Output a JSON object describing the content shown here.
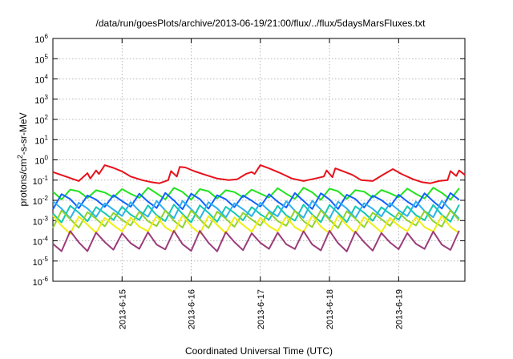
{
  "chart_data": {
    "type": "line",
    "title": "/data/run/goesPlots/archive/2013-06-19/21:00/flux/../flux/5daysMarsFluxes.txt",
    "xlabel": "Coordinated Universal Time (UTC)",
    "ylabel_parts": [
      "protons/cm",
      "2",
      "-s-sr-MeV"
    ],
    "y_scale": "log",
    "ylim": [
      1e-06,
      1000000.0
    ],
    "xlim": [
      "2013-06-14T00:00",
      "2013-06-19T23:00"
    ],
    "x_ticks": [
      {
        "label": "2013-6-15",
        "t": "2013-06-15T00:00"
      },
      {
        "label": "2013-6-16",
        "t": "2013-06-16T00:00"
      },
      {
        "label": "2013-6-17",
        "t": "2013-06-17T00:00"
      },
      {
        "label": "2013-6-18",
        "t": "2013-06-18T00:00"
      },
      {
        "label": "2013-6-19",
        "t": "2013-06-19T00:00"
      }
    ],
    "y_ticks": [
      {
        "base": "10",
        "exp": "-6",
        "value": 1e-06
      },
      {
        "base": "10",
        "exp": "-5",
        "value": 1e-05
      },
      {
        "base": "10",
        "exp": "-4",
        "value": 0.0001
      },
      {
        "base": "10",
        "exp": "-3",
        "value": 0.001
      },
      {
        "base": "10",
        "exp": "-2",
        "value": 0.01
      },
      {
        "base": "10",
        "exp": "-1",
        "value": 0.1
      },
      {
        "base": "10",
        "exp": "0",
        "value": 1
      },
      {
        "base": "10",
        "exp": "1",
        "value": 10
      },
      {
        "base": "10",
        "exp": "2",
        "value": 100
      },
      {
        "base": "10",
        "exp": "3",
        "value": 1000
      },
      {
        "base": "10",
        "exp": "4",
        "value": 10000
      },
      {
        "base": "10",
        "exp": "5",
        "value": 100000
      },
      {
        "base": "10",
        "exp": "6",
        "value": 1000000
      }
    ],
    "grid": true,
    "series": [
      {
        "color": "#e8111b",
        "t": [
          "2013-06-14T00:00",
          "2013-06-14T09:00",
          "2013-06-14T12:00",
          "2013-06-14T13:00",
          "2013-06-14T15:00",
          "2013-06-14T16:00",
          "2013-06-14T18:00",
          "2013-06-14T21:00",
          "2013-06-15T00:00",
          "2013-06-15T03:00",
          "2013-06-15T07:00",
          "2013-06-15T10:00",
          "2013-06-15T13:00",
          "2013-06-15T16:00",
          "2013-06-15T17:00",
          "2013-06-15T19:00",
          "2013-06-15T20:00",
          "2013-06-15T22:00",
          "2013-06-16T01:00",
          "2013-06-16T05:00",
          "2013-06-16T09:00",
          "2013-06-16T13:00",
          "2013-06-16T16:00",
          "2013-06-16T19:00",
          "2013-06-16T21:00",
          "2013-06-16T22:00",
          "2013-06-17T00:00",
          "2013-06-17T03:00",
          "2013-06-17T07:00",
          "2013-06-17T11:00",
          "2013-06-17T15:00",
          "2013-06-17T19:00",
          "2013-06-17T22:00",
          "2013-06-17T23:00",
          "2013-06-18T01:00",
          "2013-06-18T02:00",
          "2013-06-18T04:00",
          "2013-06-18T08:00",
          "2013-06-18T11:00",
          "2013-06-18T15:00",
          "2013-06-18T19:00",
          "2013-06-18T22:00",
          "2013-06-19T01:00",
          "2013-06-19T05:00",
          "2013-06-19T08:00",
          "2013-06-19T11:00",
          "2013-06-19T14:00",
          "2013-06-19T17:00",
          "2013-06-19T18:00",
          "2013-06-19T20:00",
          "2013-06-19T21:00",
          "2013-06-19T23:00"
        ],
        "values": [
          0.25,
          0.09,
          0.22,
          0.12,
          0.3,
          0.2,
          0.55,
          0.4,
          0.27,
          0.15,
          0.1,
          0.08,
          0.07,
          0.1,
          0.28,
          0.15,
          0.45,
          0.42,
          0.28,
          0.18,
          0.12,
          0.1,
          0.11,
          0.2,
          0.25,
          0.2,
          0.55,
          0.38,
          0.22,
          0.12,
          0.09,
          0.12,
          0.15,
          0.3,
          0.14,
          0.38,
          0.3,
          0.18,
          0.1,
          0.09,
          0.2,
          0.35,
          0.2,
          0.11,
          0.08,
          0.07,
          0.09,
          0.1,
          0.28,
          0.16,
          0.3,
          0.18
        ]
      },
      {
        "color": "#22e31e",
        "params": {
          "base": 0.022,
          "amp": 0.45,
          "drop": 0.55
        }
      },
      {
        "color": "#1060ff",
        "params": {
          "base": 0.0085,
          "amp": 0.75,
          "drop": 0.4
        }
      },
      {
        "color": "#2eb0ef",
        "params": {
          "base": 0.0028,
          "amp": 0.95,
          "drop": 0.3
        }
      },
      {
        "color": "#14c8b0",
        "params": {
          "base": 0.0017,
          "amp": 1.0,
          "drop": 0.25
        }
      },
      {
        "color": "#8fd32c",
        "params": {
          "base": 0.00085,
          "amp": 1.05,
          "drop": 0.22
        }
      },
      {
        "color": "#f2ee12",
        "params": {
          "base": 0.00042,
          "amp": 1.15,
          "drop": 0.18
        }
      },
      {
        "color": "#9b3c7a",
        "params": {
          "base": 5.5e-05,
          "amp": 1.4,
          "drop": 0.14
        }
      }
    ]
  }
}
